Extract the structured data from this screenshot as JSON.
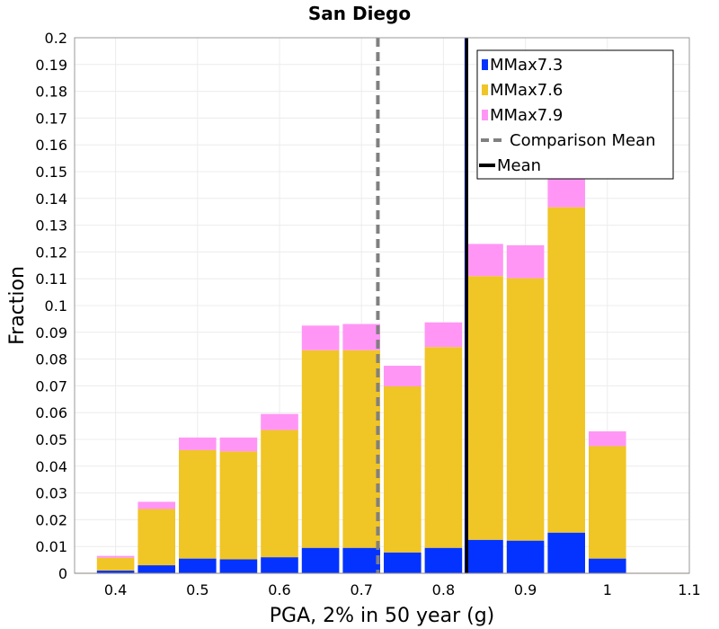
{
  "chart_data": {
    "type": "bar",
    "title": "San Diego",
    "xlabel": "PGA, 2% in 50 year (g)",
    "ylabel": "Fraction",
    "xlim": [
      0.35,
      1.1
    ],
    "ylim": [
      0,
      0.2
    ],
    "xticks": [
      "0.4",
      "0.5",
      "0.6",
      "0.7",
      "0.8",
      "0.9",
      "1",
      "1.1"
    ],
    "yticks": [
      "0",
      "0.01",
      "0.02",
      "0.03",
      "0.04",
      "0.05",
      "0.06",
      "0.07",
      "0.08",
      "0.09",
      "0.1",
      "0.11",
      "0.12",
      "0.13",
      "0.14",
      "0.15",
      "0.16",
      "0.17",
      "0.18",
      "0.19",
      "0.2"
    ],
    "stacked": true,
    "grid": true,
    "legend_position": "top-right",
    "bin_width": 0.05,
    "x": [
      0.4,
      0.45,
      0.5,
      0.55,
      0.6,
      0.65,
      0.7,
      0.75,
      0.8,
      0.85,
      0.9,
      0.95,
      1.0
    ],
    "series": [
      {
        "name": "MMax7.3",
        "color": "#0433ff",
        "values": [
          0.001,
          0.003,
          0.0055,
          0.0052,
          0.006,
          0.0095,
          0.0095,
          0.0078,
          0.0095,
          0.0125,
          0.0122,
          0.0152,
          0.0055
        ]
      },
      {
        "name": "MMax7.6",
        "color": "#f0c526",
        "values": [
          0.0048,
          0.021,
          0.0405,
          0.0403,
          0.0475,
          0.0738,
          0.0738,
          0.062,
          0.075,
          0.0985,
          0.098,
          0.1215,
          0.042
        ]
      },
      {
        "name": "MMax7.9",
        "color": "#ff96f5",
        "values": [
          0.0007,
          0.0027,
          0.0047,
          0.0052,
          0.006,
          0.0092,
          0.0098,
          0.0077,
          0.0092,
          0.012,
          0.0123,
          0.0155,
          0.0055
        ]
      }
    ],
    "lines": [
      {
        "name": "Comparison Mean",
        "x": 0.72,
        "style": "dashed",
        "color": "#808080"
      },
      {
        "name": "Mean",
        "x": 0.828,
        "style": "solid",
        "color": "#000000"
      }
    ]
  }
}
